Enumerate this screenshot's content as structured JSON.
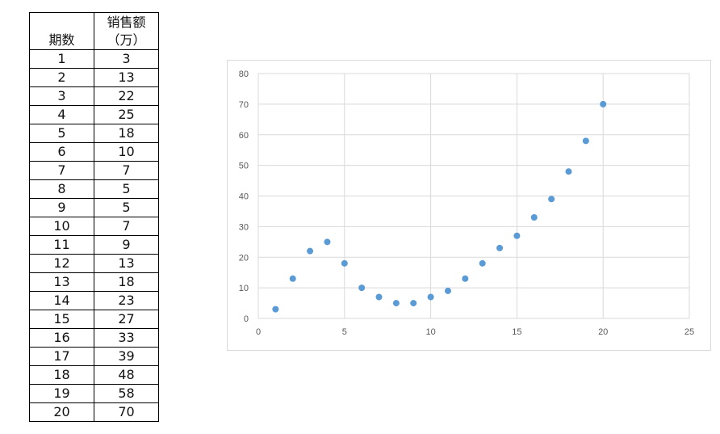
{
  "table": {
    "headers": [
      "期数",
      "销售额",
      "（万）"
    ],
    "rows": [
      [
        "1",
        "3"
      ],
      [
        "2",
        "13"
      ],
      [
        "3",
        "22"
      ],
      [
        "4",
        "25"
      ],
      [
        "5",
        "18"
      ],
      [
        "6",
        "10"
      ],
      [
        "7",
        "7"
      ],
      [
        "8",
        "5"
      ],
      [
        "9",
        "5"
      ],
      [
        "10",
        "7"
      ],
      [
        "11",
        "9"
      ],
      [
        "12",
        "13"
      ],
      [
        "13",
        "18"
      ],
      [
        "14",
        "23"
      ],
      [
        "15",
        "27"
      ],
      [
        "16",
        "33"
      ],
      [
        "17",
        "39"
      ],
      [
        "18",
        "48"
      ],
      [
        "19",
        "58"
      ],
      [
        "20",
        "70"
      ]
    ]
  },
  "chart_data": {
    "type": "scatter",
    "x": [
      1,
      2,
      3,
      4,
      5,
      6,
      7,
      8,
      9,
      10,
      11,
      12,
      13,
      14,
      15,
      16,
      17,
      18,
      19,
      20
    ],
    "y": [
      3,
      13,
      22,
      25,
      18,
      10,
      7,
      5,
      5,
      7,
      9,
      13,
      18,
      23,
      27,
      33,
      39,
      48,
      58,
      70
    ],
    "xlim": [
      0,
      25
    ],
    "ylim": [
      0,
      80
    ],
    "xticks": [
      0,
      5,
      10,
      15,
      20,
      25
    ],
    "yticks": [
      0,
      10,
      20,
      30,
      40,
      50,
      60,
      70,
      80
    ],
    "grid": true,
    "marker_color": "#5b9bd5",
    "title": "",
    "xlabel": "",
    "ylabel": ""
  }
}
